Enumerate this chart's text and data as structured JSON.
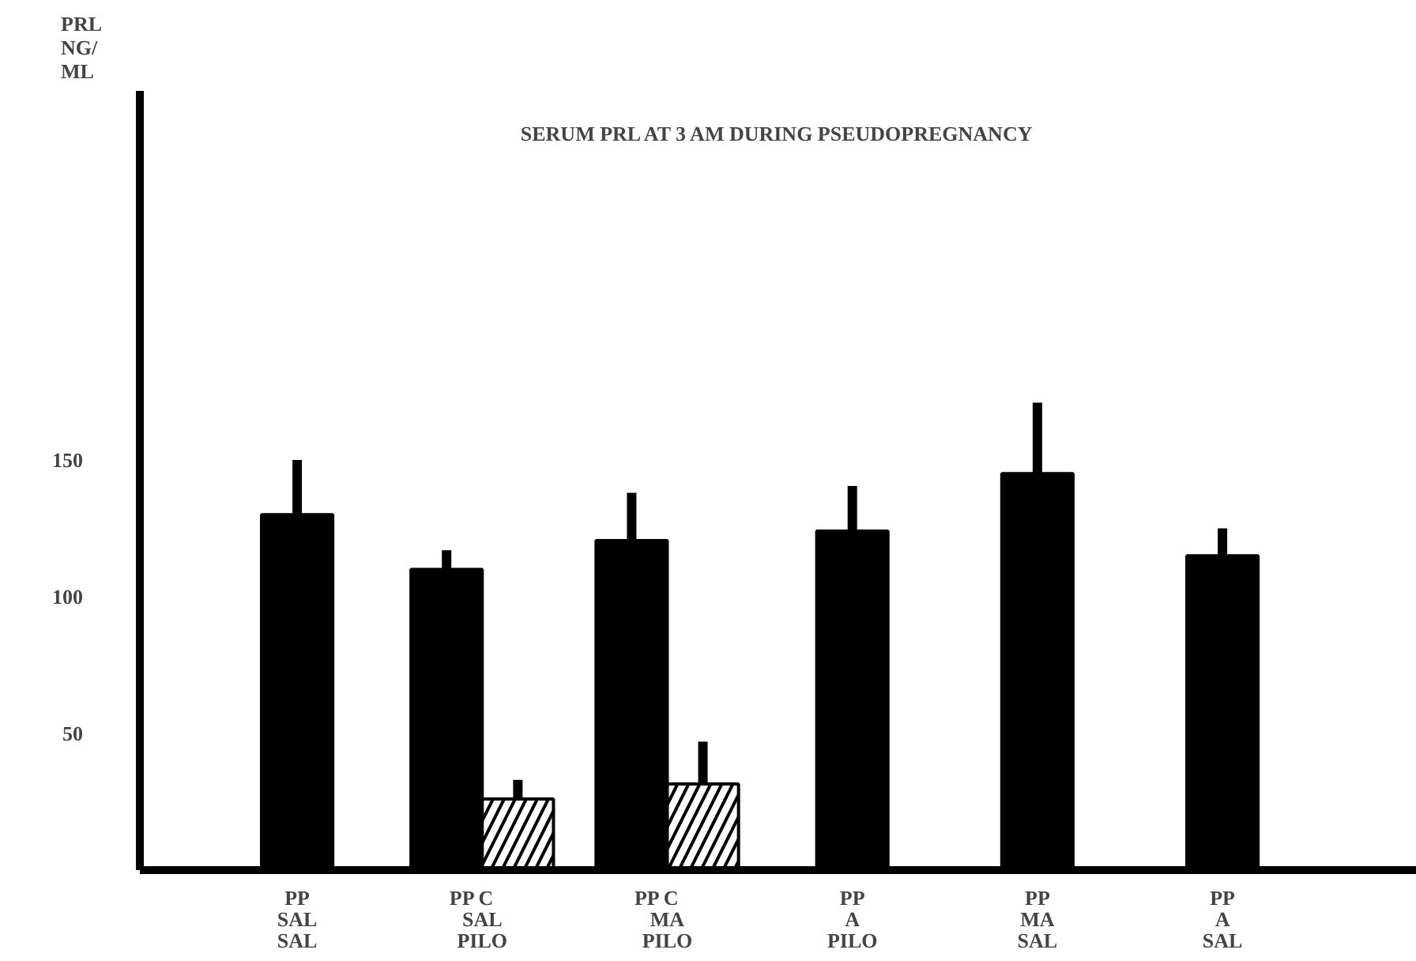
{
  "chart_data": {
    "type": "bar",
    "title": "SERUM PRL AT 3 AM DURING PSEUDOPREGNANCY",
    "ylabel": "PRL\nNG/\nML",
    "categories": [
      "SAL\nSAL",
      "SAL\nPILO",
      "MA\nPILO",
      "A\nPILO",
      "MA\nSAL",
      "A\nSAL"
    ],
    "series": [
      {
        "name": "PP",
        "color": "#000000",
        "values": [
          130,
          110,
          120.5,
          124,
          145,
          115
        ],
        "errors": [
          [
            130,
            150
          ],
          [
            110,
            117
          ],
          [
            120.5,
            138
          ],
          [
            124,
            140.5
          ],
          [
            145,
            171
          ],
          [
            115,
            125
          ]
        ]
      },
      {
        "name": "C",
        "color": "#000000",
        "values": [
          null,
          26,
          31.5,
          null,
          null,
          null
        ],
        "errors": [
          null,
          [
            26,
            33
          ],
          [
            31.5,
            47
          ],
          null,
          null,
          null
        ]
      }
    ],
    "ylim": [
      0,
      285
    ],
    "yticks": [
      50,
      100,
      150
    ],
    "grid": false
  }
}
